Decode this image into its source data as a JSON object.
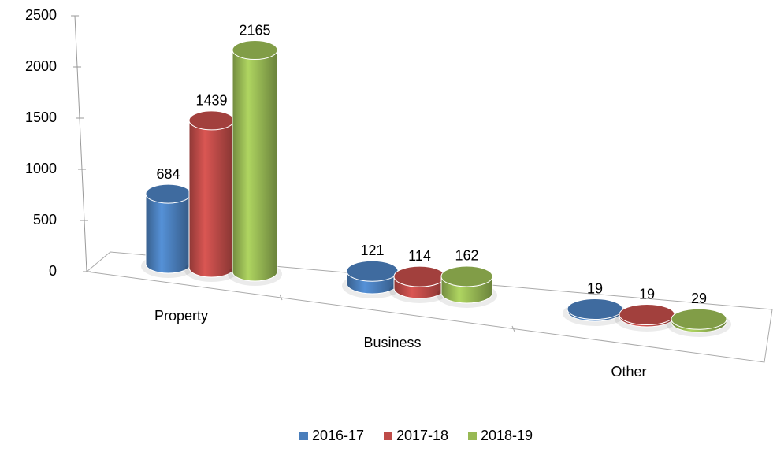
{
  "chart_data": {
    "type": "bar3d",
    "categories": [
      "Property",
      "Business",
      "Other"
    ],
    "series": [
      {
        "name": "2016-17",
        "color": "#4a7ebb",
        "values": [
          684,
          121,
          19
        ]
      },
      {
        "name": "2017-18",
        "color": "#be4b48",
        "values": [
          1439,
          114,
          19
        ]
      },
      {
        "name": "2018-19",
        "color": "#98b954",
        "values": [
          2165,
          162,
          29
        ]
      }
    ],
    "ylim": [
      0,
      2500
    ],
    "yticks": [
      0,
      500,
      1000,
      1500,
      2000,
      2500
    ],
    "legend": "bottom"
  }
}
